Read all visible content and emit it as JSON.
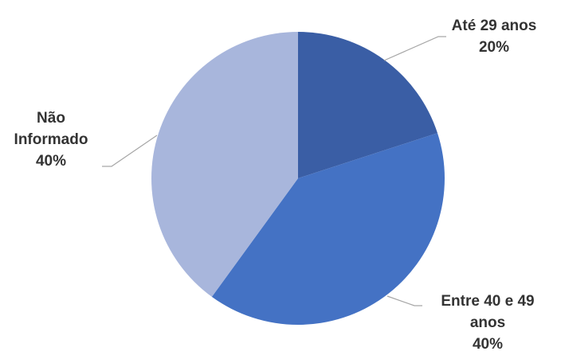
{
  "chart_data": {
    "type": "pie",
    "slices": [
      {
        "label_lines": [
          "Até 29 anos"
        ],
        "value": 20,
        "value_text": "20%",
        "color": "#3a5ea5"
      },
      {
        "label_lines": [
          "Entre 40 e 49",
          "anos"
        ],
        "value": 40,
        "value_text": "40%",
        "color": "#4472c4"
      },
      {
        "label_lines": [
          "Não",
          "Informado"
        ],
        "value": 40,
        "value_text": "40%",
        "color": "#a8b6dc"
      }
    ],
    "legend": false
  }
}
